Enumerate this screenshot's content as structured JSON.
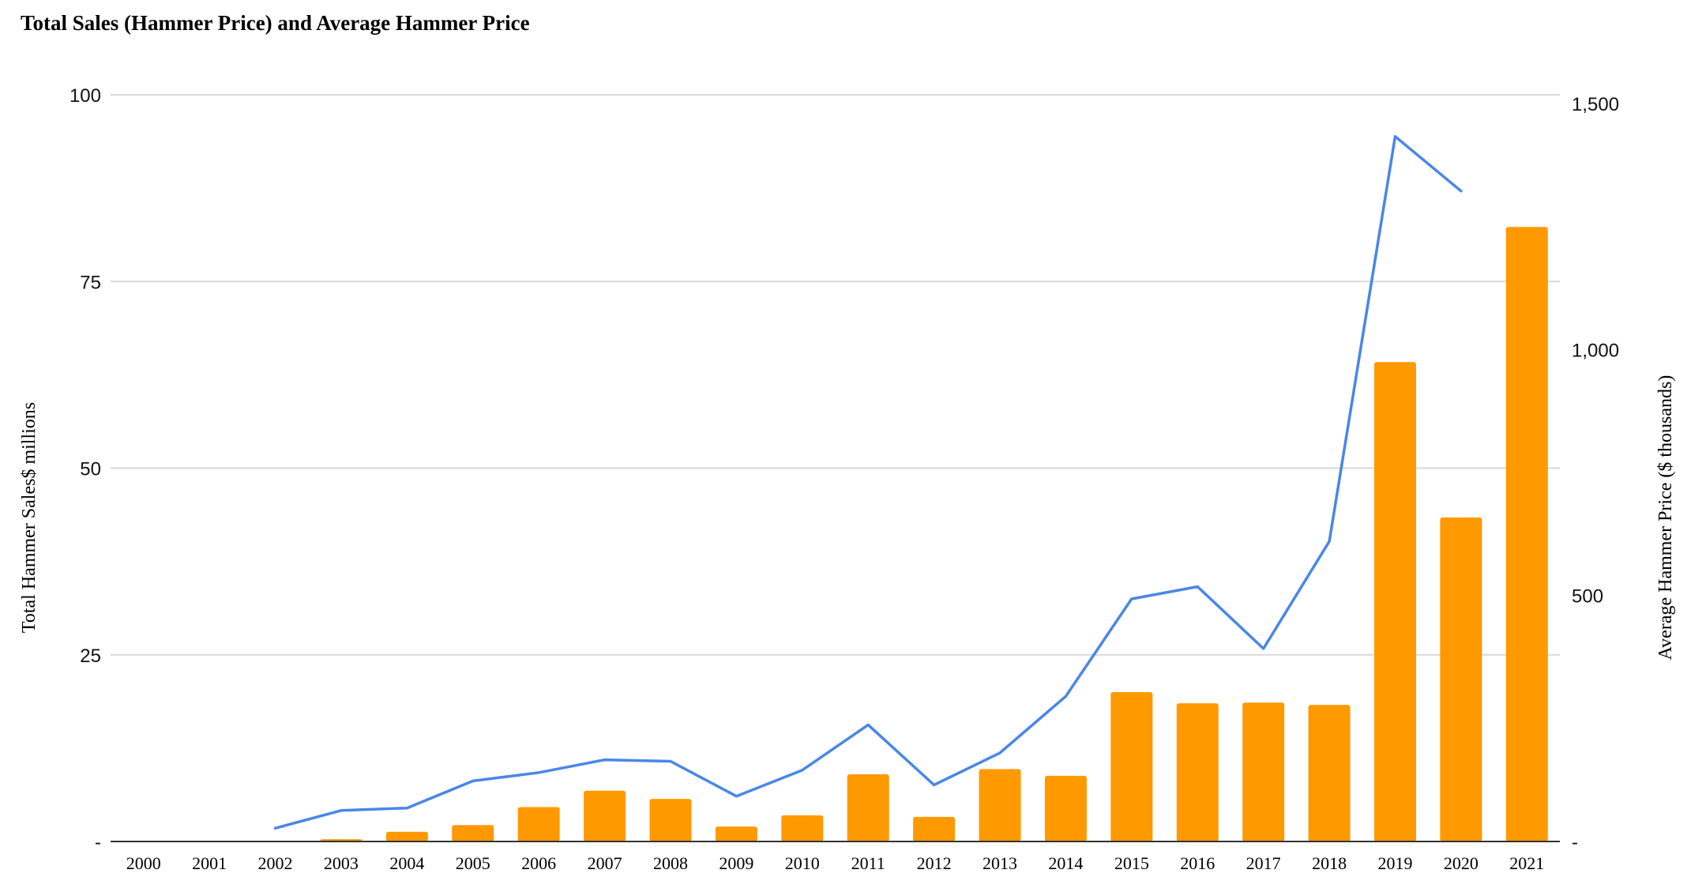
{
  "chart_data": {
    "type": "bar",
    "title": "Total Sales (Hammer Price) and Average Hammer Price",
    "ylabel": "Total Hammer Sales$ millions",
    "y2label": "Average Hammer Price ($ thousands)",
    "ylim": [
      0,
      100
    ],
    "y2lim": [
      0,
      1500
    ],
    "yticks": [
      "-",
      "25",
      "50",
      "75",
      "100"
    ],
    "y2ticks": [
      "-",
      "500",
      "1,000",
      "1,500"
    ],
    "grid": true,
    "categories": [
      "2000",
      "2001",
      "2002",
      "2003",
      "2004",
      "2005",
      "2006",
      "2007",
      "2008",
      "2009",
      "2010",
      "2011",
      "2012",
      "2013",
      "2014",
      "2015",
      "2016",
      "2017",
      "2018",
      "2019",
      "2020",
      "2021"
    ],
    "series": [
      {
        "type": "bar",
        "axis": "left",
        "color": "#ff9900",
        "values": [
          0,
          0,
          0,
          0.3,
          1.3,
          2.2,
          4.6,
          6.8,
          5.7,
          2.0,
          3.5,
          9.0,
          3.3,
          9.7,
          8.8,
          20.0,
          18.5,
          18.6,
          18.3,
          64.2,
          43.4,
          82.3
        ]
      },
      {
        "type": "line",
        "axis": "right",
        "color": "#4a86e8",
        "values": [
          null,
          null,
          27,
          63,
          68,
          123,
          140,
          166,
          163,
          92,
          145,
          237,
          115,
          180,
          295,
          493,
          518,
          392,
          610,
          1433,
          1322,
          null
        ]
      }
    ]
  }
}
